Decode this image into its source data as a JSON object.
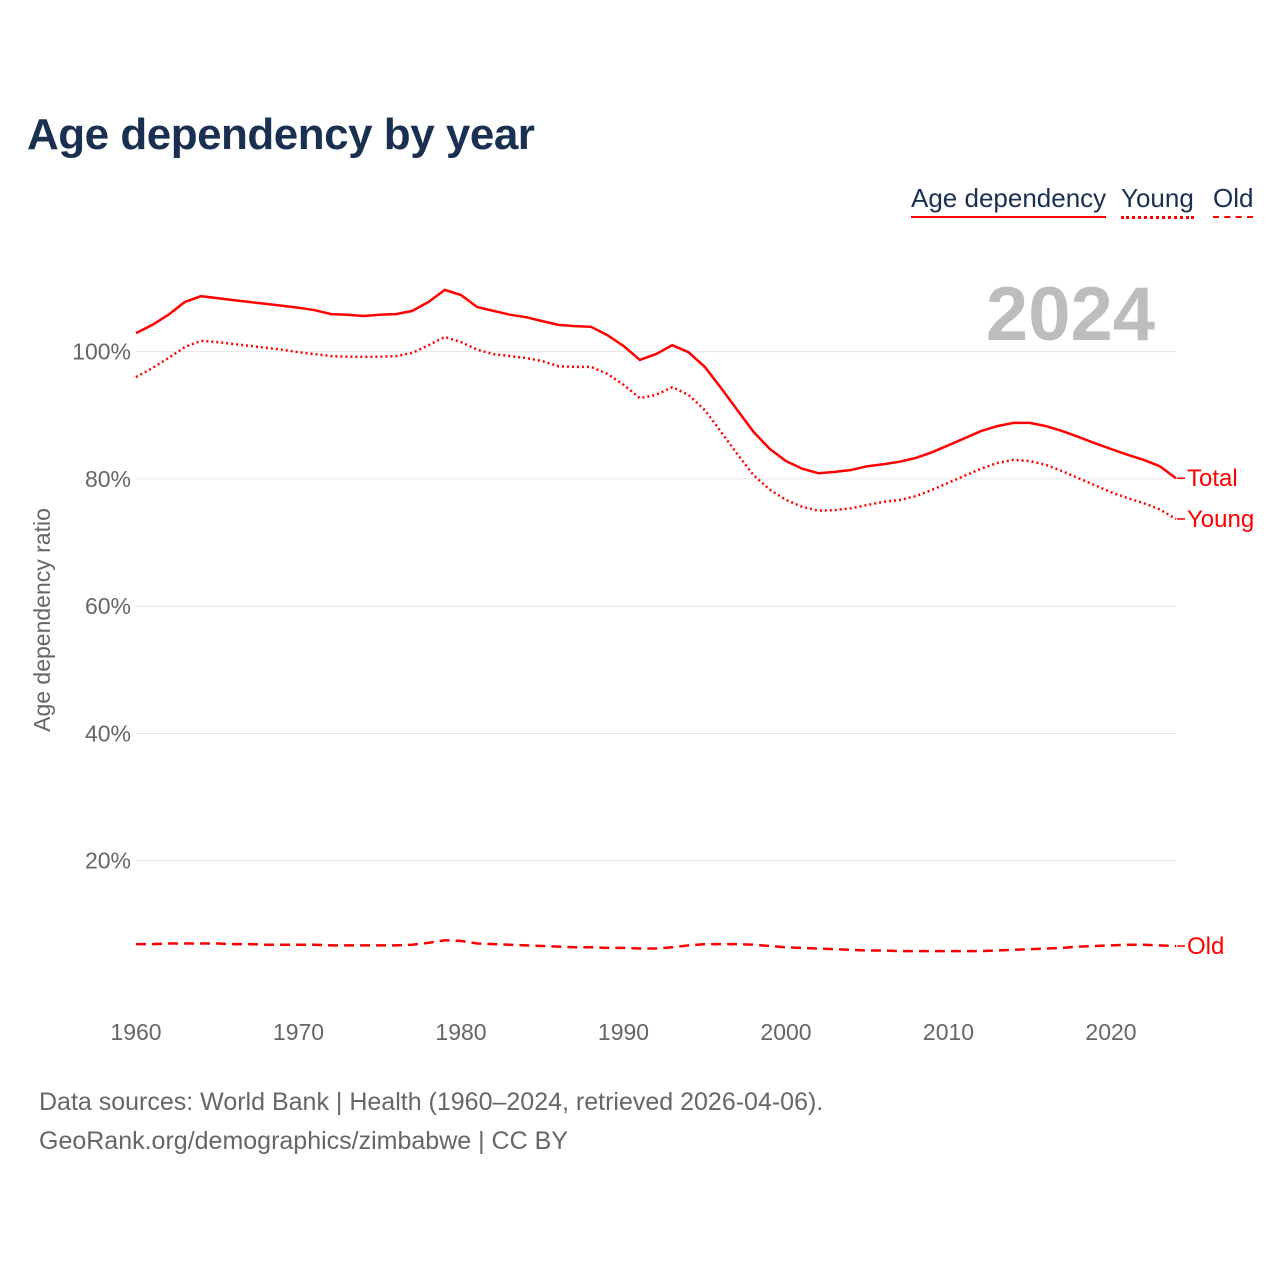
{
  "title": "Age dependency by year",
  "legend": [
    "Age dependency",
    "Young",
    "Old"
  ],
  "footer": {
    "line1": "Data sources: World Bank | Health (1960–2024, retrieved 2026-04-06).",
    "line2": "GeoRank.org/demographics/zimbabwe | CC BY"
  },
  "chart_data": {
    "type": "line",
    "title": "Age dependency by year",
    "ylabel": "Age dependency ratio",
    "xlabel": "",
    "watermark_year": "2024",
    "xlim": [
      1960,
      2024
    ],
    "ylim": [
      0,
      110
    ],
    "x_ticks": [
      1960,
      1970,
      1980,
      1990,
      2000,
      2010,
      2020
    ],
    "y_ticks": [
      20,
      40,
      60,
      80,
      100
    ],
    "y_tick_labels": [
      "20%",
      "40%",
      "60%",
      "80%",
      "100%"
    ],
    "grid": true,
    "color": "#ff0000",
    "x_start": 1960,
    "series": [
      {
        "name": "Total",
        "style": "solid",
        "values": [
          102.9,
          104.2,
          105.8,
          107.8,
          108.7,
          108.4,
          108.1,
          107.8,
          107.5,
          107.2,
          106.9,
          106.5,
          105.9,
          105.8,
          105.6,
          105.8,
          105.9,
          106.4,
          107.8,
          109.7,
          108.9,
          107.0,
          106.4,
          105.8,
          105.4,
          104.8,
          104.2,
          104.0,
          103.9,
          102.6,
          100.9,
          98.7,
          99.6,
          101.0,
          99.9,
          97.6,
          94.3,
          90.8,
          87.4,
          84.7,
          82.8,
          81.6,
          80.9,
          81.1,
          81.4,
          82.0,
          82.3,
          82.7,
          83.3,
          84.2,
          85.3,
          86.4,
          87.5,
          88.3,
          88.8,
          88.8,
          88.3,
          87.5,
          86.6,
          85.6,
          84.7,
          83.8,
          83.0,
          82.0,
          80.1
        ]
      },
      {
        "name": "Young",
        "style": "dotted",
        "values": [
          96.0,
          97.4,
          99.0,
          100.7,
          101.7,
          101.5,
          101.2,
          100.9,
          100.6,
          100.3,
          99.9,
          99.6,
          99.3,
          99.2,
          99.2,
          99.2,
          99.3,
          99.8,
          101.0,
          102.3,
          101.5,
          100.3,
          99.6,
          99.3,
          99.0,
          98.5,
          97.7,
          97.6,
          97.6,
          96.5,
          94.8,
          92.7,
          93.2,
          94.4,
          93.2,
          90.8,
          87.4,
          83.9,
          80.6,
          78.3,
          76.7,
          75.6,
          75.0,
          75.1,
          75.4,
          75.9,
          76.4,
          76.7,
          77.3,
          78.3,
          79.4,
          80.5,
          81.6,
          82.5,
          83.0,
          82.8,
          82.2,
          81.2,
          80.1,
          79.0,
          77.9,
          77.0,
          76.2,
          75.2,
          73.7
        ]
      },
      {
        "name": "Old",
        "style": "dashed",
        "values": [
          6.9,
          6.9,
          7.0,
          7.0,
          7.0,
          7.0,
          6.9,
          6.9,
          6.8,
          6.8,
          6.8,
          6.8,
          6.7,
          6.7,
          6.7,
          6.7,
          6.7,
          6.8,
          7.1,
          7.5,
          7.4,
          7.0,
          6.9,
          6.8,
          6.7,
          6.6,
          6.5,
          6.4,
          6.4,
          6.3,
          6.3,
          6.2,
          6.2,
          6.4,
          6.7,
          6.9,
          6.9,
          6.9,
          6.8,
          6.6,
          6.4,
          6.3,
          6.2,
          6.1,
          6.0,
          5.9,
          5.9,
          5.8,
          5.8,
          5.8,
          5.8,
          5.8,
          5.8,
          5.9,
          6.0,
          6.1,
          6.2,
          6.3,
          6.5,
          6.6,
          6.7,
          6.8,
          6.8,
          6.7,
          6.6
        ]
      }
    ]
  }
}
